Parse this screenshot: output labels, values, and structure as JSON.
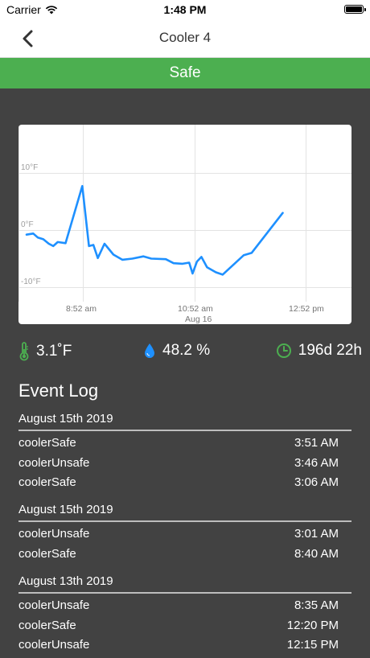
{
  "status_bar": {
    "carrier": "Carrier",
    "time": "1:48 PM"
  },
  "nav": {
    "title": "Cooler 4"
  },
  "banner": {
    "status": "Safe",
    "color": "#4caf50"
  },
  "chart_data": {
    "type": "line",
    "ylabel_ticks": [
      "-10°F",
      "0°F",
      "10°F"
    ],
    "x_ticks": [
      "8:52 am",
      "10:52 am",
      "12:52 pm"
    ],
    "x_sublabel": "Aug 16",
    "ylim": [
      -10,
      20
    ],
    "grid": true,
    "series": [
      {
        "color": "#1e90ff",
        "x": [
          0,
          0.06,
          0.1,
          0.15,
          0.2,
          0.24,
          0.28,
          0.35,
          0.5,
          0.56,
          0.6,
          0.64,
          0.7,
          0.78,
          0.86,
          0.95,
          1.05,
          1.12,
          1.25,
          1.32,
          1.4,
          1.46,
          1.49,
          1.53,
          1.57,
          1.62,
          1.7,
          1.76,
          1.95,
          2.02,
          2.3
        ],
        "y": [
          -0.8,
          -0.6,
          -1.3,
          -1.6,
          -2.4,
          -2.8,
          -2.1,
          -2.3,
          7.7,
          -2.8,
          -2.6,
          -4.9,
          -2.4,
          -4.3,
          -5.2,
          -5.0,
          -4.6,
          -5.0,
          -5.1,
          -5.8,
          -5.9,
          -5.7,
          -7.6,
          -5.5,
          -4.7,
          -6.5,
          -7.4,
          -7.8,
          -4.4,
          -4.0,
          3.0
        ]
      }
    ]
  },
  "stats": {
    "temperature": "3.1˚F",
    "humidity": "48.2 %",
    "uptime": "196d 22h"
  },
  "event_log": {
    "title": "Event Log",
    "groups": [
      {
        "date": "August 15th 2019",
        "events": [
          {
            "name": "coolerSafe",
            "time": "3:51 AM"
          },
          {
            "name": "coolerUnsafe",
            "time": "3:46 AM"
          },
          {
            "name": "coolerSafe",
            "time": "3:06 AM"
          }
        ]
      },
      {
        "date": "August 15th 2019",
        "events": [
          {
            "name": "coolerUnsafe",
            "time": "3:01 AM"
          },
          {
            "name": "coolerSafe",
            "time": "8:40 AM"
          }
        ]
      },
      {
        "date": "August 13th 2019",
        "events": [
          {
            "name": "coolerUnsafe",
            "time": "8:35 AM"
          },
          {
            "name": "coolerSafe",
            "time": "12:20 PM"
          },
          {
            "name": "coolerUnsafe",
            "time": "12:15 PM"
          }
        ]
      }
    ]
  },
  "icons": {
    "thermometer": "thermometer-icon",
    "water_drop": "water-drop-icon",
    "clock": "clock-icon",
    "back": "back-chevron-icon",
    "wifi": "wifi-icon",
    "battery": "battery-icon"
  },
  "colors": {
    "accent_green": "#4caf50",
    "accent_blue": "#1e90ff",
    "background": "#424242"
  }
}
